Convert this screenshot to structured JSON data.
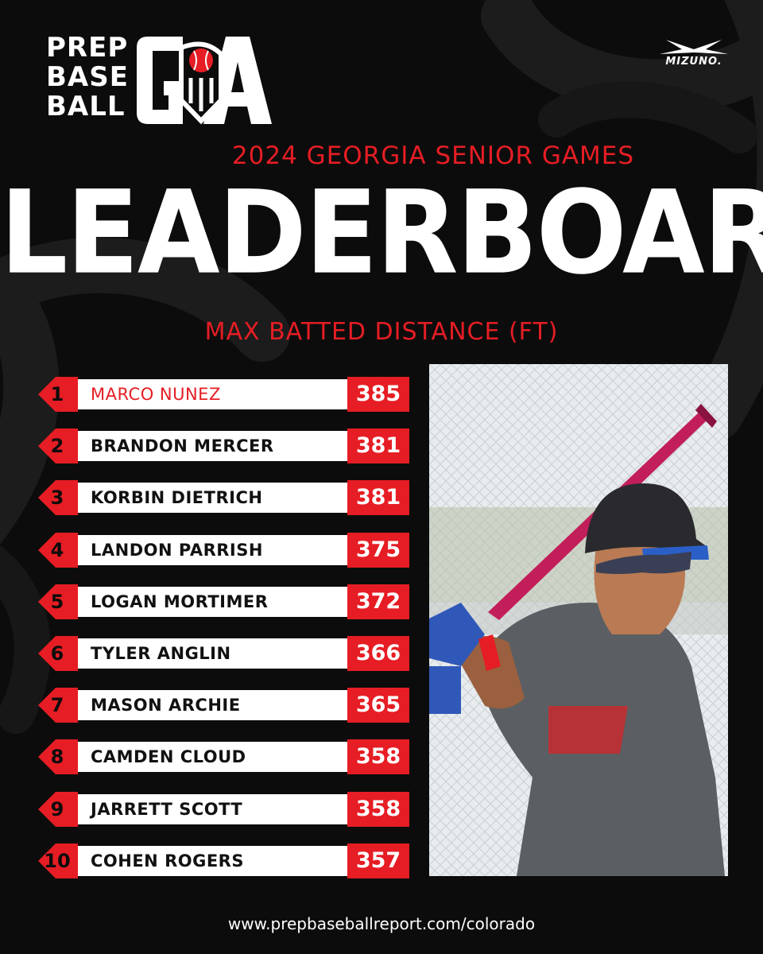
{
  "logo": {
    "lines": [
      "PREP",
      "BASE",
      "BALL"
    ],
    "state_abbr": "GA"
  },
  "sponsor": {
    "name": "MIZUNO."
  },
  "header": {
    "event": "2024 GEORGIA SENIOR GAMES",
    "title": "LEADERBOARD",
    "metric": "MAX BATTED DISTANCE (FT)"
  },
  "colors": {
    "accent": "#e61d24",
    "background": "#0c0c0c",
    "row_bar": "#ffffff"
  },
  "leaderboard": [
    {
      "rank": "1",
      "name": "MARCO NUNEZ",
      "value": "385"
    },
    {
      "rank": "2",
      "name": "BRANDON MERCER",
      "value": "381"
    },
    {
      "rank": "3",
      "name": "KORBIN DIETRICH",
      "value": "381"
    },
    {
      "rank": "4",
      "name": "LANDON PARRISH",
      "value": "375"
    },
    {
      "rank": "5",
      "name": "LOGAN MORTIMER",
      "value": "372"
    },
    {
      "rank": "6",
      "name": "TYLER ANGLIN",
      "value": "366"
    },
    {
      "rank": "7",
      "name": "MASON ARCHIE",
      "value": "365"
    },
    {
      "rank": "8",
      "name": "CAMDEN CLOUD",
      "value": "358"
    },
    {
      "rank": "9",
      "name": "JARRETT SCOTT",
      "value": "358"
    },
    {
      "rank": "10",
      "name": "COHEN ROGERS",
      "value": "357"
    }
  ],
  "footer": {
    "url": "www.prepbaseballreport.com/colorado"
  }
}
